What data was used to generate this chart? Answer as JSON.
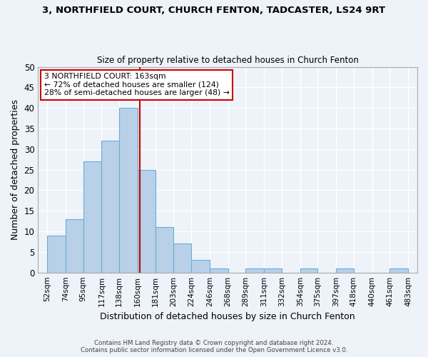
{
  "title": "3, NORTHFIELD COURT, CHURCH FENTON, TADCASTER, LS24 9RT",
  "subtitle": "Size of property relative to detached houses in Church Fenton",
  "xlabel": "Distribution of detached houses by size in Church Fenton",
  "ylabel": "Number of detached properties",
  "bar_values": [
    9,
    13,
    27,
    32,
    40,
    25,
    11,
    7,
    3,
    1,
    0,
    1,
    1,
    0,
    1,
    0,
    1,
    0,
    0,
    1
  ],
  "bin_edges": [
    52,
    74,
    95,
    117,
    138,
    160,
    181,
    203,
    224,
    246,
    268,
    289,
    311,
    332,
    354,
    375,
    397,
    418,
    440,
    461,
    483
  ],
  "bin_labels": [
    "52sqm",
    "74sqm",
    "95sqm",
    "117sqm",
    "138sqm",
    "160sqm",
    "181sqm",
    "203sqm",
    "224sqm",
    "246sqm",
    "268sqm",
    "289sqm",
    "311sqm",
    "332sqm",
    "354sqm",
    "375sqm",
    "397sqm",
    "418sqm",
    "440sqm",
    "461sqm",
    "483sqm"
  ],
  "bar_color": "#b8d0e8",
  "bar_edge_color": "#6aaed6",
  "vline_color": "#cc0000",
  "vline_x_bar": 4.64,
  "annotation_title": "3 NORTHFIELD COURT: 163sqm",
  "annotation_line1": "← 72% of detached houses are smaller (124)",
  "annotation_line2": "28% of semi-detached houses are larger (48) →",
  "annotation_box_color": "#ffffff",
  "annotation_border_color": "#cc0000",
  "ylim": [
    0,
    50
  ],
  "yticks": [
    0,
    5,
    10,
    15,
    20,
    25,
    30,
    35,
    40,
    45,
    50
  ],
  "footer1": "Contains HM Land Registry data © Crown copyright and database right 2024.",
  "footer2": "Contains public sector information licensed under the Open Government Licence v3.0.",
  "background_color": "#eef2f9",
  "grid_color": "#ffffff"
}
